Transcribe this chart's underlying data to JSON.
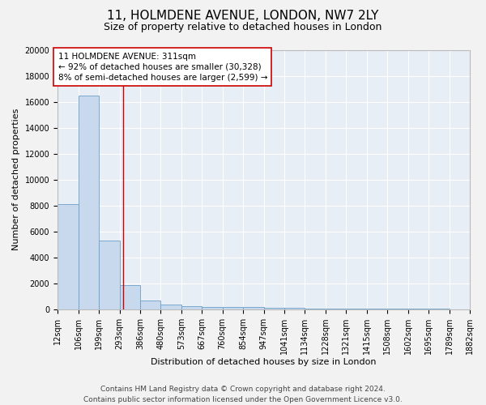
{
  "title_line1": "11, HOLMDENE AVENUE, LONDON, NW7 2LY",
  "title_line2": "Size of property relative to detached houses in London",
  "xlabel": "Distribution of detached houses by size in London",
  "ylabel": "Number of detached properties",
  "bin_edges": [
    12,
    106,
    199,
    293,
    386,
    480,
    573,
    667,
    760,
    854,
    947,
    1041,
    1134,
    1228,
    1321,
    1415,
    1508,
    1602,
    1695,
    1789,
    1882
  ],
  "bar_heights": [
    8100,
    16500,
    5300,
    1850,
    700,
    350,
    250,
    200,
    175,
    150,
    120,
    80,
    60,
    50,
    40,
    30,
    25,
    20,
    15,
    10
  ],
  "bar_color": "#c8d9ee",
  "bar_edge_color": "#6a9fc8",
  "red_line_x": 311,
  "red_line_color": "#cc0000",
  "annotation_text": "11 HOLMDENE AVENUE: 311sqm\n← 92% of detached houses are smaller (30,328)\n8% of semi-detached houses are larger (2,599) →",
  "annotation_box_color": "#ffffff",
  "annotation_box_edge_color": "#cc0000",
  "ylim": [
    0,
    20000
  ],
  "yticks": [
    0,
    2000,
    4000,
    6000,
    8000,
    10000,
    12000,
    14000,
    16000,
    18000,
    20000
  ],
  "plot_bg_color": "#e8eef5",
  "fig_bg_color": "#f2f2f2",
  "grid_color": "#ffffff",
  "footer_line1": "Contains HM Land Registry data © Crown copyright and database right 2024.",
  "footer_line2": "Contains public sector information licensed under the Open Government Licence v3.0.",
  "title_fontsize": 11,
  "subtitle_fontsize": 9,
  "axis_label_fontsize": 8,
  "tick_fontsize": 7,
  "annotation_fontsize": 7.5,
  "footer_fontsize": 6.5
}
